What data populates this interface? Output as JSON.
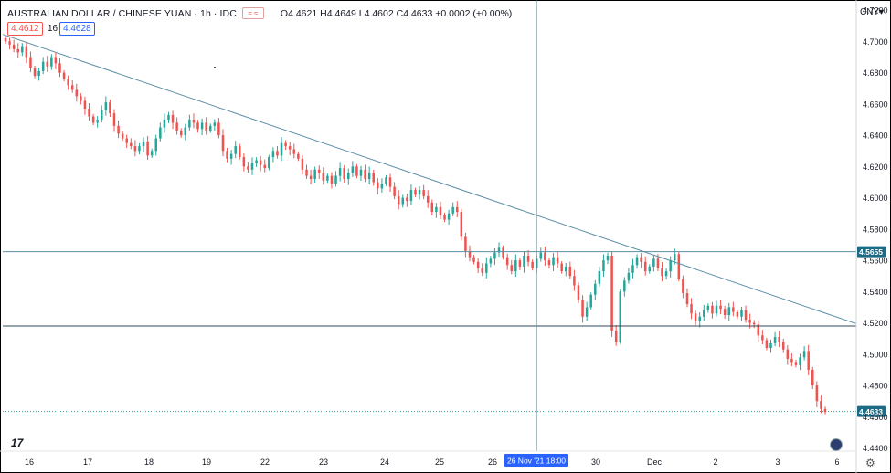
{
  "header": {
    "symbol": "AUSTRALIAN DOLLAR / CHINESE YUAN · 1h · IDC",
    "ohlc": "O4.4621 H4.4649 L4.4602 C4.4633 +0.0002 (+0.00%)",
    "sell_price": "4.4612",
    "quantity": "16",
    "buy_price": "4.4628",
    "currency": "CNY"
  },
  "icons": {
    "flag": "flag-badge-icon",
    "logo": "tradingview-logo-icon",
    "globe": "globe-icon",
    "settings": "gear-icon"
  },
  "colors": {
    "up": "#26a69a",
    "down": "#ef5350",
    "trendline": "#5b8ea6",
    "hline": "#2f4858",
    "crosshair": "#5a7a8a",
    "badge": "#1e6b86",
    "current": "#1e6b86"
  },
  "chart_data": {
    "type": "candlestick",
    "y_range": [
      4.438,
      4.723
    ],
    "y_ticks": [
      "4.7200",
      "4.7000",
      "4.6800",
      "4.6600",
      "4.6400",
      "4.6200",
      "4.6000",
      "4.5800",
      "4.5600",
      "4.5400",
      "4.5200",
      "4.5000",
      "4.4800",
      "4.4600",
      "4.4400"
    ],
    "x_labels": [
      "16",
      "17",
      "18",
      "19",
      "22",
      "23",
      "24",
      "25",
      "26",
      "30",
      "Dec",
      "2",
      "3",
      "6"
    ],
    "crosshair_label": "26 Nov '21    18:00",
    "horizontal_levels": [
      {
        "value": 4.5655,
        "label": "4.5655"
      },
      {
        "value": 4.518,
        "label": ""
      }
    ],
    "current_price": {
      "value": 4.4633,
      "label": "4.4633"
    },
    "trendline": {
      "from": [
        0,
        4.7045
      ],
      "to": [
        1,
        4.5195
      ]
    },
    "series_closes": [
      4.7,
      4.698,
      4.695,
      4.693,
      4.697,
      4.69,
      4.683,
      4.678,
      4.681,
      4.687,
      4.684,
      4.69,
      4.686,
      4.68,
      4.676,
      4.672,
      4.669,
      4.665,
      4.662,
      4.657,
      4.652,
      4.648,
      4.65,
      4.656,
      4.661,
      4.654,
      4.646,
      4.641,
      4.638,
      4.635,
      4.633,
      4.63,
      4.633,
      4.636,
      4.627,
      4.63,
      4.638,
      4.645,
      4.65,
      4.653,
      4.648,
      4.643,
      4.64,
      4.645,
      4.65,
      4.648,
      4.644,
      4.648,
      4.643,
      4.646,
      4.648,
      4.64,
      4.63,
      4.625,
      4.628,
      4.633,
      4.626,
      4.62,
      4.618,
      4.622,
      4.624,
      4.621,
      4.619,
      4.626,
      4.63,
      4.627,
      4.635,
      4.633,
      4.631,
      4.628,
      4.625,
      4.618,
      4.614,
      4.612,
      4.618,
      4.616,
      4.611,
      4.614,
      4.609,
      4.614,
      4.619,
      4.612,
      4.616,
      4.62,
      4.614,
      4.618,
      4.612,
      4.616,
      4.61,
      4.606,
      4.609,
      4.613,
      4.607,
      4.601,
      4.596,
      4.6,
      4.598,
      4.605,
      4.602,
      4.605,
      4.601,
      4.597,
      4.591,
      4.594,
      4.589,
      4.586,
      4.59,
      4.594,
      4.591,
      4.575,
      4.566,
      4.562,
      4.559,
      4.555,
      4.552,
      4.558,
      4.561,
      4.565,
      4.568,
      4.562,
      4.557,
      4.553,
      4.56,
      4.556,
      4.563,
      4.559,
      4.555,
      4.561,
      4.565,
      4.56,
      4.557,
      4.562,
      4.558,
      4.553,
      4.556,
      4.55,
      4.544,
      4.535,
      4.524,
      4.53,
      4.538,
      4.545,
      4.553,
      4.56,
      4.563,
      4.515,
      4.508,
      4.54,
      4.547,
      4.552,
      4.557,
      4.562,
      4.559,
      4.553,
      4.556,
      4.561,
      4.555,
      4.55,
      4.553,
      4.56,
      4.564,
      4.548,
      4.539,
      4.532,
      4.526,
      4.521,
      4.524,
      4.528,
      4.531,
      4.526,
      4.531,
      4.529,
      4.525,
      4.53,
      4.527,
      4.524,
      4.528,
      4.522,
      4.52,
      4.519,
      4.512,
      4.509,
      4.504,
      4.507,
      4.511,
      4.508,
      4.503,
      4.497,
      4.495,
      4.493,
      4.498,
      4.502,
      4.49,
      4.48,
      4.47,
      4.465,
      4.463
    ]
  }
}
